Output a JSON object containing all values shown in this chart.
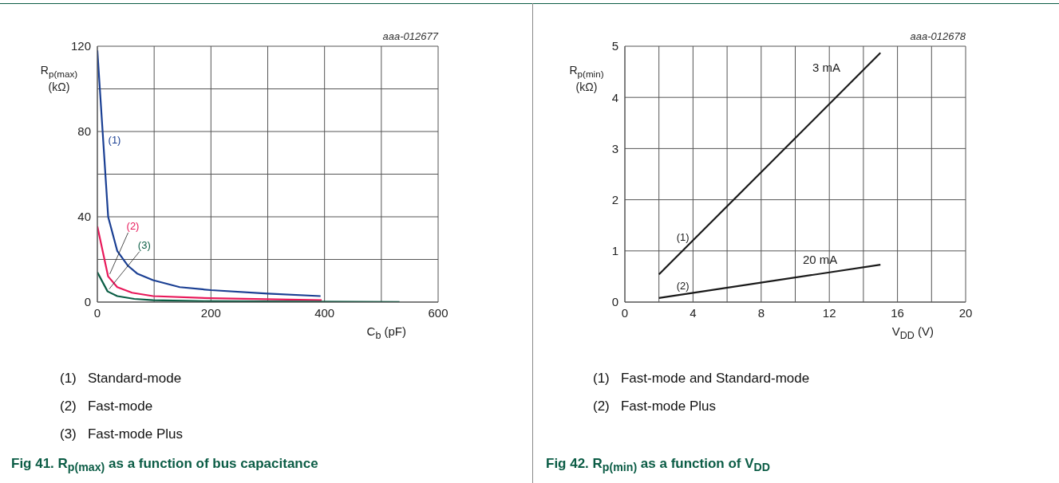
{
  "chart_data": [
    {
      "type": "line",
      "title": "Fig 41. R$_{p(max)}$ as a function of bus capacitance",
      "subtitle": "aaa-012677",
      "xlabel": "C$_{b}$ (pF)",
      "ylabel": "R$_{p(max)}$ (kΩ)",
      "xlim": [
        0,
        600
      ],
      "xticks": [
        0,
        {
          "value": 100,
          "label": null
        },
        200,
        {
          "value": 300,
          "label": null
        },
        400,
        {
          "value": 500,
          "label": null
        },
        600
      ],
      "ylim": [
        0,
        120
      ],
      "yticks": [
        0,
        {
          "value": 20,
          "label": null
        },
        40,
        {
          "value": 60,
          "label": null
        },
        80,
        {
          "value": 100,
          "label": null
        },
        120
      ],
      "grid": true,
      "series": [
        {
          "name": "(1)",
          "color": "#1a3f93",
          "x": [
            0,
            19,
            35,
            54,
            70,
            98,
            145,
            200,
            300,
            393
          ],
          "values": [
            118,
            40,
            24,
            17,
            13.4,
            10.3,
            7,
            5.6,
            4,
            2.8
          ]
        },
        {
          "name": "(2)",
          "color": "#e8195a",
          "x": [
            0,
            19,
            35,
            61,
            98,
            200,
            395
          ],
          "values": [
            35.5,
            12,
            7,
            4.4,
            2.8,
            1.8,
            0.9
          ]
        },
        {
          "name": "(3)",
          "color": "#0b5e45",
          "x": [
            0,
            18,
            35,
            65,
            98,
            200,
            532
          ],
          "values": [
            14,
            5,
            2.8,
            1.5,
            0.9,
            0.4,
            0.1
          ]
        }
      ],
      "annotations": [
        "(1)   Standard-mode",
        "(2)   Fast-mode",
        "(3)   Fast-mode Plus"
      ]
    },
    {
      "type": "line",
      "title": "Fig 42. R$_{p(min)}$ as a function of V$_{DD}$",
      "subtitle": "aaa-012678",
      "xlabel": "V$_{DD}$ (V)",
      "ylabel": "R$_{p(min)}$ (kΩ)",
      "xlim": [
        0,
        20
      ],
      "xticks": [
        0,
        {
          "value": 2,
          "label": null
        },
        4,
        {
          "value": 6,
          "label": null
        },
        8,
        {
          "value": 10,
          "label": null
        },
        12,
        {
          "value": 14,
          "label": null
        },
        16,
        {
          "value": 18,
          "label": null
        },
        20
      ],
      "ylim": [
        0,
        5
      ],
      "yticks": [
        0,
        1,
        2,
        3,
        4,
        5
      ],
      "grid": true,
      "series": [
        {
          "name": "(1)",
          "color": "#1a1a1a",
          "x": [
            2,
            15
          ],
          "values": [
            0.54,
            4.87
          ]
        },
        {
          "name": "(2)",
          "color": "#1a1a1a",
          "x": [
            2,
            15
          ],
          "values": [
            0.08,
            0.73
          ]
        }
      ],
      "annotations": [
        "3 mA",
        "20 mA",
        "(1)   Fast-mode and Standard-mode",
        "(2)   Fast-mode Plus"
      ]
    }
  ]
}
